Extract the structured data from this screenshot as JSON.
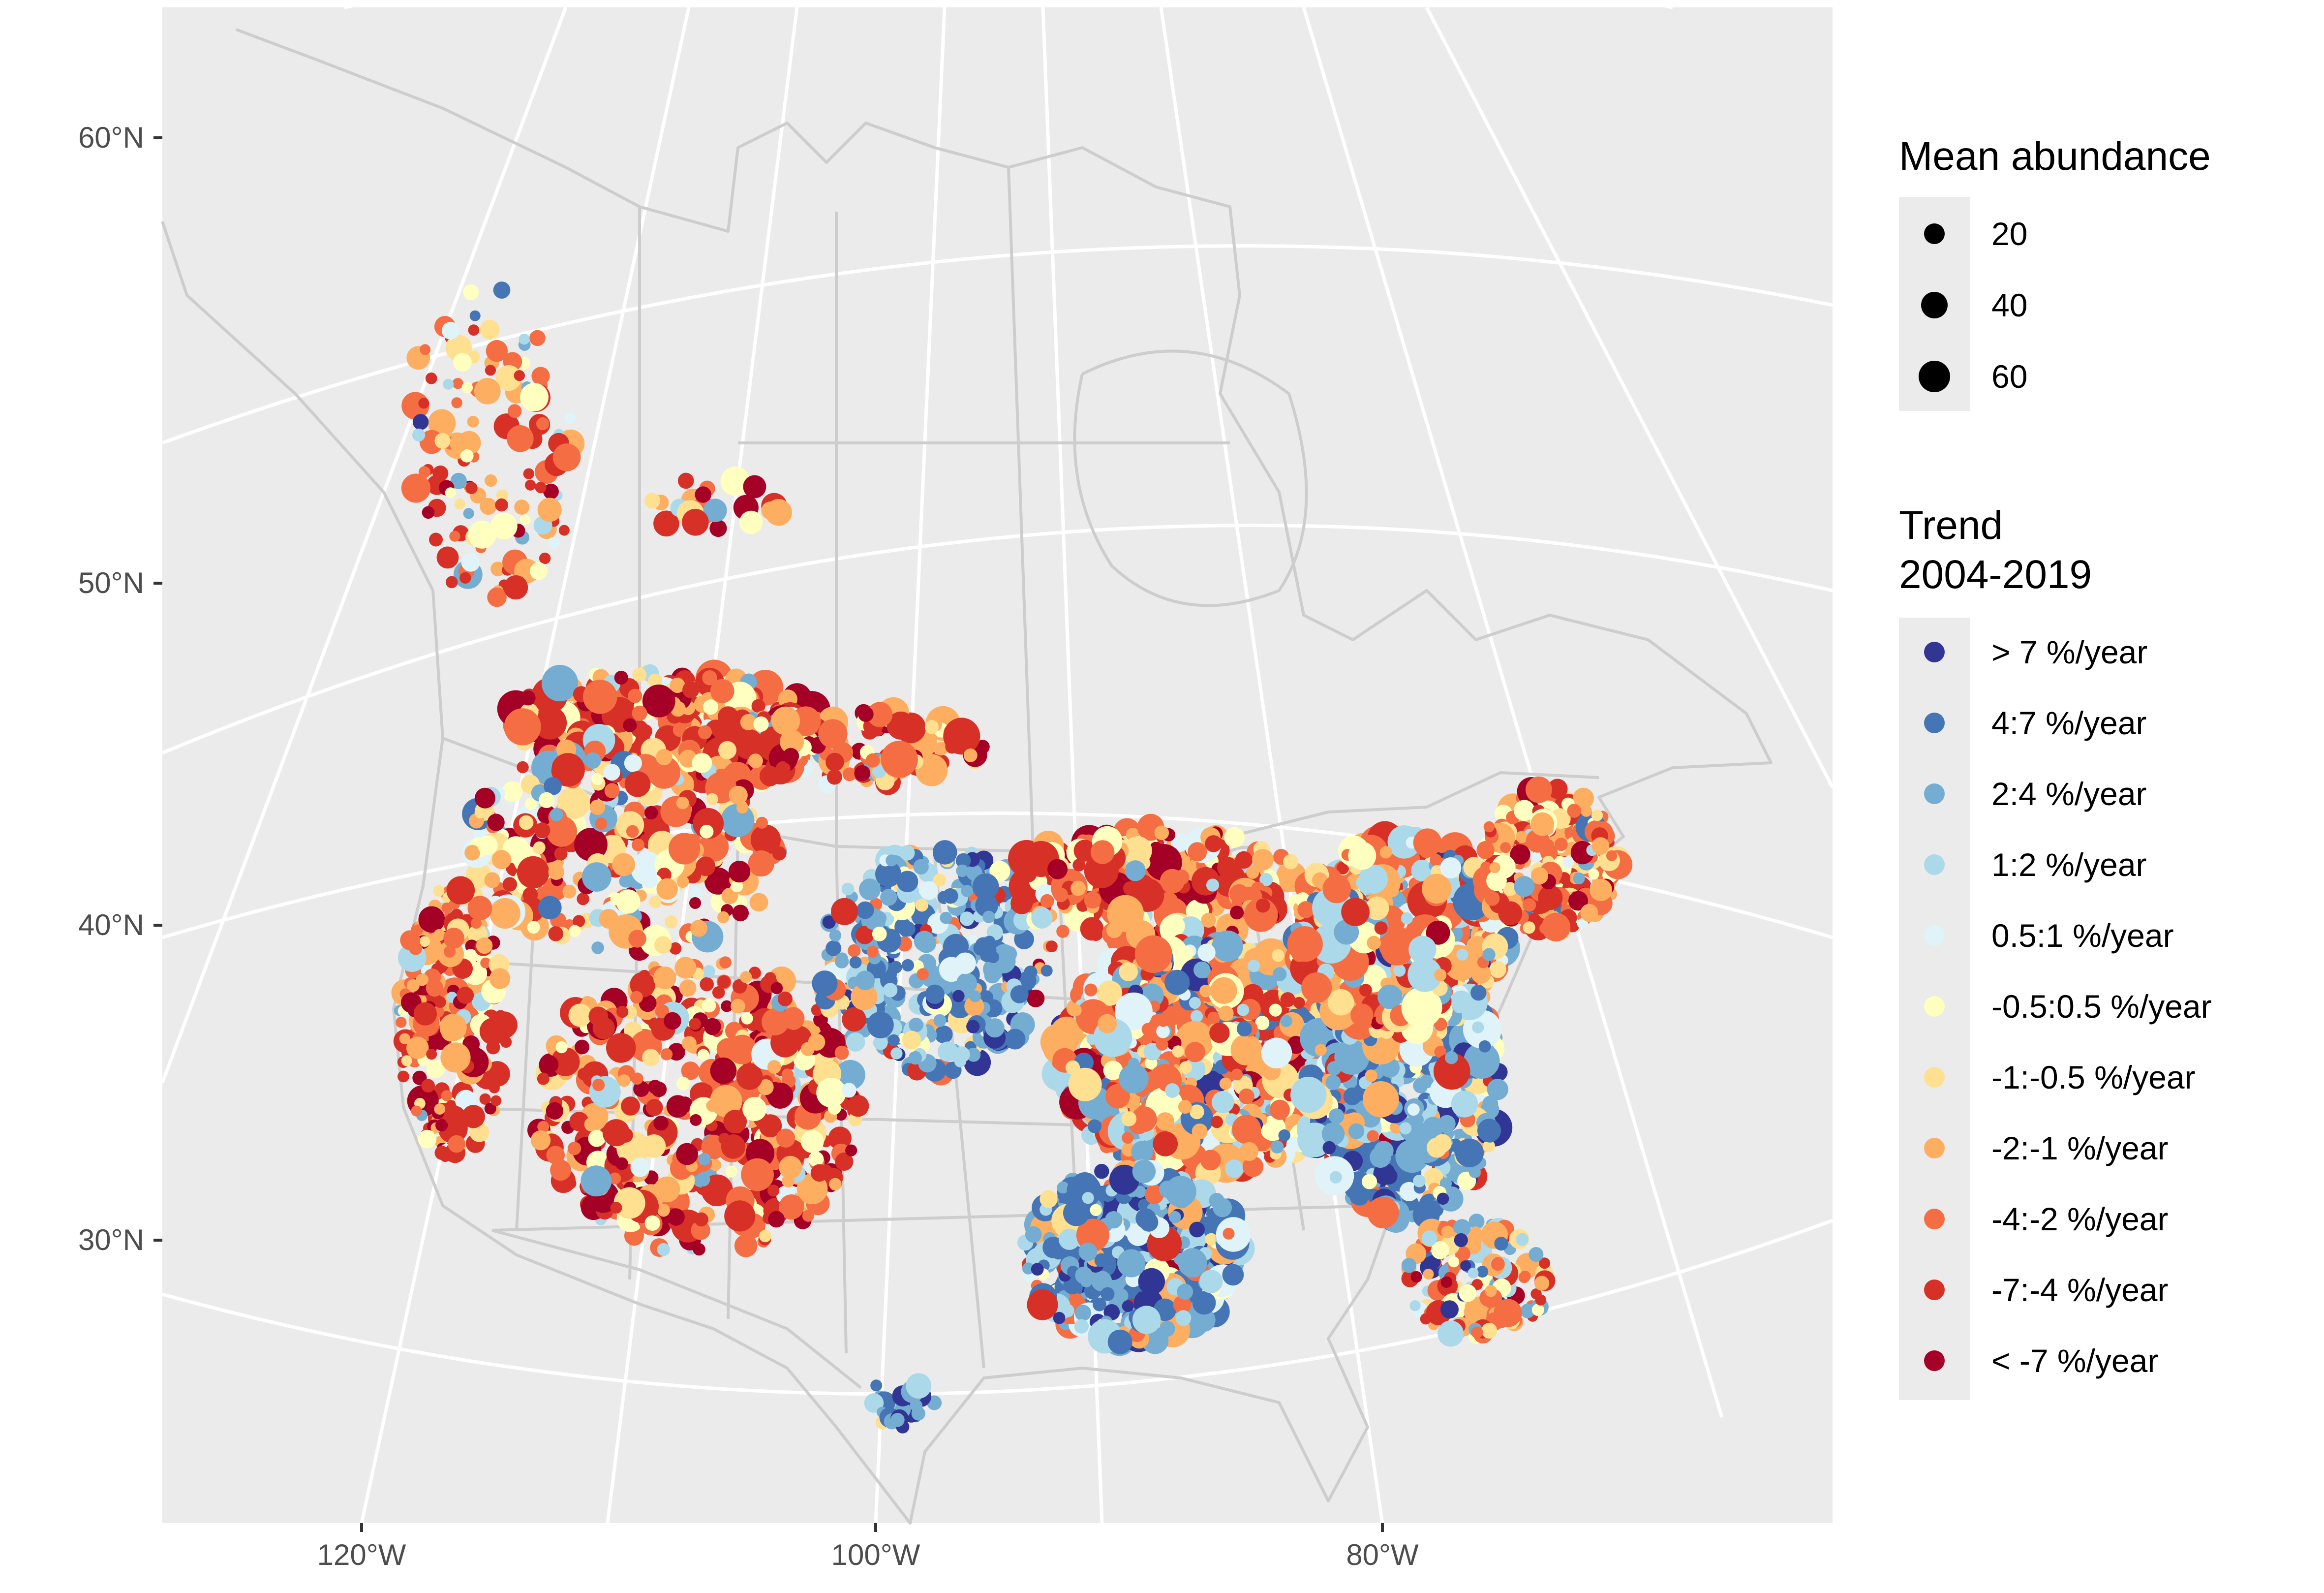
{
  "map": {
    "projection": "Lambert Conformal Conic",
    "latitude_labels": [
      "60°N",
      "50°N",
      "40°N",
      "30°N"
    ],
    "longitude_labels": [
      "120°W",
      "100°W",
      "80°W"
    ],
    "latitude_values": [
      60,
      50,
      40,
      30
    ],
    "longitude_values": [
      -120,
      -100,
      -80
    ],
    "colors": {
      "panel": "#ebebeb",
      "graticule": "#ffffff",
      "borders": "#cdcdcd",
      "tick": "#333333"
    }
  },
  "legend_size": {
    "title": "Mean abundance",
    "items": [
      {
        "label": "20",
        "value": 20
      },
      {
        "label": "40",
        "value": 40
      },
      {
        "label": "60",
        "value": 60
      }
    ]
  },
  "legend_trend": {
    "title_line1": "Trend",
    "title_line2": "2004-2019",
    "items": [
      {
        "label": "> 7 %/year",
        "color": "#313695"
      },
      {
        "label": "4:7 %/year",
        "color": "#4575b4"
      },
      {
        "label": "2:4 %/year",
        "color": "#74add1"
      },
      {
        "label": "1:2 %/year",
        "color": "#abd9e9"
      },
      {
        "label": "0.5:1 %/year",
        "color": "#e0f3f8"
      },
      {
        "label": "-0.5:0.5 %/year",
        "color": "#ffffbf"
      },
      {
        "label": "-1:-0.5 %/year",
        "color": "#fee090"
      },
      {
        "label": "-2:-1 %/year",
        "color": "#fdae61"
      },
      {
        "label": "-4:-2 %/year",
        "color": "#f46d43"
      },
      {
        "label": "-7:-4 %/year",
        "color": "#d73027"
      },
      {
        "label": "< -7 %/year",
        "color": "#a50026"
      }
    ]
  }
}
